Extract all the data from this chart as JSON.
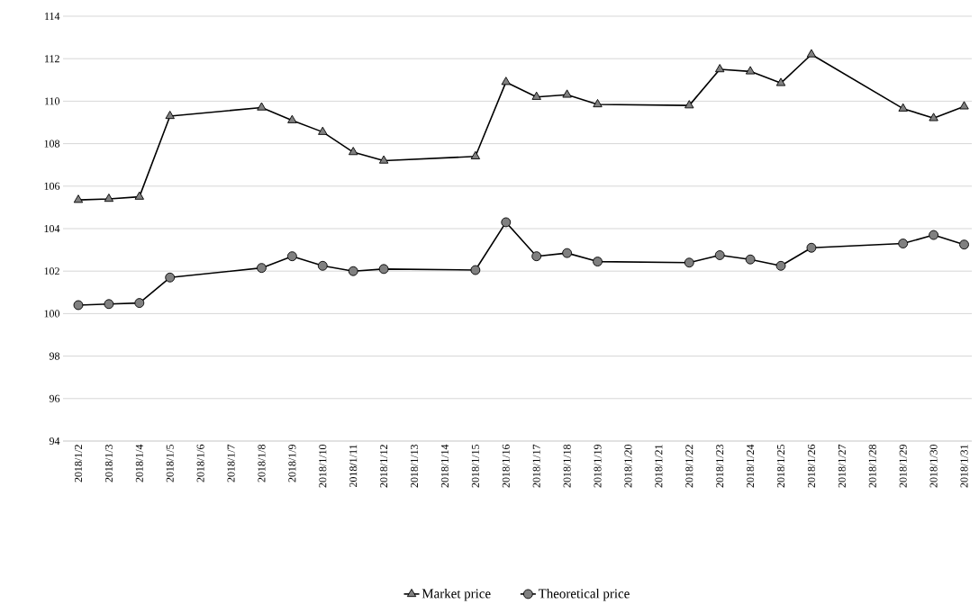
{
  "chart_data": {
    "type": "line",
    "x": [
      "2018-01-02",
      "2018-01-03",
      "2018-01-04",
      "2018-01-05",
      "2018-01-08",
      "2018-01-09",
      "2018-01-10",
      "2018-01-11",
      "2018-01-12",
      "2018-01-15",
      "2018-01-16",
      "2018-01-17",
      "2018-01-18",
      "2018-01-19",
      "2018-01-22",
      "2018-01-23",
      "2018-01-24",
      "2018-01-25",
      "2018-01-26",
      "2018-01-29",
      "2018-01-30",
      "2018-01-31"
    ],
    "series": [
      {
        "name": "Market price",
        "color": "#808080",
        "marker": "triangle",
        "values": [
          105.35,
          105.4,
          105.5,
          109.3,
          109.7,
          109.1,
          108.55,
          107.6,
          107.2,
          107.4,
          110.9,
          110.2,
          110.3,
          109.85,
          109.8,
          111.5,
          111.4,
          110.85,
          112.2,
          109.65,
          109.2,
          109.75
        ]
      },
      {
        "name": "Theoretical price",
        "color": "#808080",
        "marker": "circle",
        "values": [
          100.4,
          100.45,
          100.5,
          101.7,
          102.15,
          102.7,
          102.25,
          102.0,
          102.1,
          102.05,
          104.3,
          102.7,
          102.85,
          102.45,
          102.4,
          102.75,
          102.55,
          102.25,
          103.1,
          103.3,
          103.7,
          103.25
        ]
      }
    ],
    "xlim": [
      "2018-01-01T12:00",
      "2018-01-31T06:00"
    ],
    "xticks": [
      {
        "value": "2018-01-02",
        "label": "2018/1/2"
      },
      {
        "value": "2018-01-03",
        "label": "2018/1/3"
      },
      {
        "value": "2018-01-04",
        "label": "2018/1/4"
      },
      {
        "value": "2018-01-05",
        "label": "2018/1/5"
      },
      {
        "value": "2018-01-06",
        "label": "2018/1/6"
      },
      {
        "value": "2018-01-07",
        "label": "2018/1/7"
      },
      {
        "value": "2018-01-08",
        "label": "2018/1/8"
      },
      {
        "value": "2018-01-09",
        "label": "2018/1/9"
      },
      {
        "value": "2018-01-10",
        "label": "2018/1/10"
      },
      {
        "value": "2018-01-11",
        "label": "2018/1/11"
      },
      {
        "value": "2018-01-12",
        "label": "2018/1/12"
      },
      {
        "value": "2018-01-13",
        "label": "2018/1/13"
      },
      {
        "value": "2018-01-14",
        "label": "2018/1/14"
      },
      {
        "value": "2018-01-15",
        "label": "2018/1/15"
      },
      {
        "value": "2018-01-16",
        "label": "2018/1/16"
      },
      {
        "value": "2018-01-17",
        "label": "2018/1/17"
      },
      {
        "value": "2018-01-18",
        "label": "2018/1/18"
      },
      {
        "value": "2018-01-19",
        "label": "2018/1/19"
      },
      {
        "value": "2018-01-20",
        "label": "2018/1/20"
      },
      {
        "value": "2018-01-21",
        "label": "2018/1/21"
      },
      {
        "value": "2018-01-22",
        "label": "2018/1/22"
      },
      {
        "value": "2018-01-23",
        "label": "2018/1/23"
      },
      {
        "value": "2018-01-24",
        "label": "2018/1/24"
      },
      {
        "value": "2018-01-25",
        "label": "2018/1/25"
      },
      {
        "value": "2018-01-26",
        "label": "2018/1/26"
      },
      {
        "value": "2018-01-27",
        "label": "2018/1/27"
      },
      {
        "value": "2018-01-28",
        "label": "2018/1/28"
      },
      {
        "value": "2018-01-29",
        "label": "2018/1/29"
      },
      {
        "value": "2018-01-30",
        "label": "2018/1/30"
      },
      {
        "value": "2018-01-31",
        "label": "2018/1/31"
      }
    ],
    "ylim": [
      94,
      114
    ],
    "yticks": [
      94,
      96,
      98,
      100,
      102,
      104,
      106,
      108,
      110,
      112,
      114
    ],
    "grid": "y",
    "legend": "bottom",
    "line_style": "solid"
  }
}
